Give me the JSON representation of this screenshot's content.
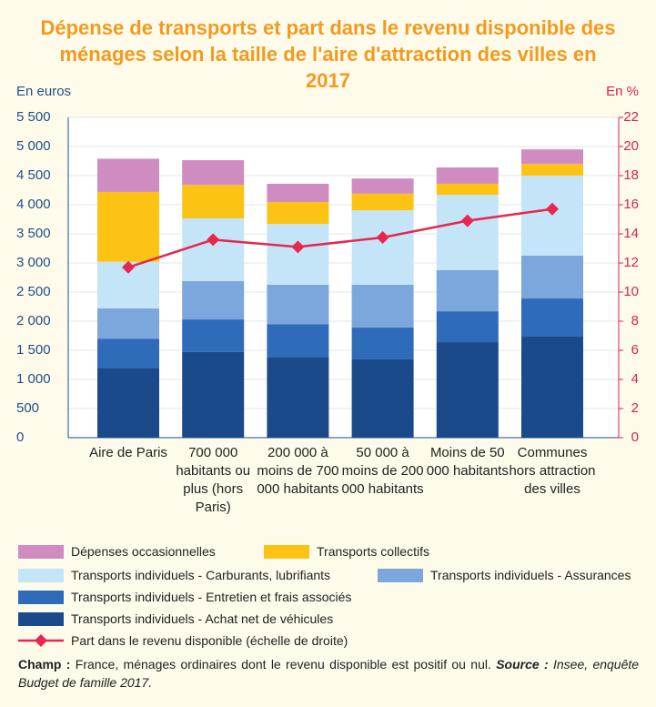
{
  "chart_data": {
    "type": "bar",
    "title": "Dépense de transports et part dans le revenu disponible des ménages selon la taille de l'aire d'attraction des villes en 2017",
    "y_label": "En euros",
    "y2_label": "En %",
    "categories": [
      "Aire de Paris",
      "700 000 habitants ou plus (hors Paris)",
      "200 000 à moins de 700 000 habitants",
      "50 000 à moins de 200 000 habitants",
      "Moins de 50 000 habitants",
      "Communes hors attraction des villes"
    ],
    "stacked": true,
    "grid": true,
    "series": [
      {
        "name": "Transports individuels - Achat net de véhicules",
        "color": "#1a4a8a",
        "values": [
          1200,
          1470,
          1375,
          1345,
          1640,
          1735
        ]
      },
      {
        "name": "Transports individuels - Entretien et frais associés",
        "color": "#2e6bb8",
        "values": [
          500,
          560,
          575,
          545,
          530,
          655
        ]
      },
      {
        "name": "Transports individuels - Assurances",
        "color": "#7ba7dc",
        "values": [
          520,
          660,
          675,
          735,
          705,
          735
        ]
      },
      {
        "name": "Transports individuels - Carburants, lubrifiants",
        "color": "#c4e4f7",
        "values": [
          800,
          1075,
          1045,
          1280,
          1295,
          1375
        ]
      },
      {
        "name": "Transports collectifs",
        "color": "#fcc315",
        "values": [
          1200,
          575,
          375,
          285,
          190,
          200
        ]
      },
      {
        "name": "Dépenses occasionnelles",
        "color": "#d08cc0",
        "values": [
          570,
          425,
          315,
          260,
          280,
          250
        ]
      },
      {
        "name": "Part dans le revenu disponible (échelle de droite)",
        "color": "#e8264e",
        "type": "line",
        "axis": "y2",
        "values": [
          11.7,
          13.6,
          13.1,
          13.75,
          14.9,
          15.7
        ]
      }
    ],
    "ylim": [
      0,
      5500
    ],
    "yticks": [
      0,
      500,
      {
        "value": 1000,
        "label": "1 000"
      },
      {
        "value": 1500,
        "label": "1 500"
      },
      {
        "value": 2000,
        "label": "2 000"
      },
      {
        "value": 2500,
        "label": "2 500"
      },
      {
        "value": 3000,
        "label": "3 000"
      },
      {
        "value": 3500,
        "label": "3 500"
      },
      {
        "value": 4000,
        "label": "4 000"
      },
      {
        "value": 4500,
        "label": "4 500"
      },
      {
        "value": 5000,
        "label": "5 000"
      },
      {
        "value": 5500,
        "label": "5 500"
      }
    ],
    "y2lim": [
      0,
      22
    ],
    "y2ticks": [
      0,
      2,
      4,
      6,
      8,
      10,
      12,
      14,
      16,
      18,
      20,
      22
    ],
    "note": {
      "champ_label": "Champ :",
      "champ_text": "France, ménages ordinaires dont le revenu disponible est positif ou nul.",
      "source_label": "Source :",
      "source_text": "Insee, enquête Budget de famille 2017."
    }
  }
}
